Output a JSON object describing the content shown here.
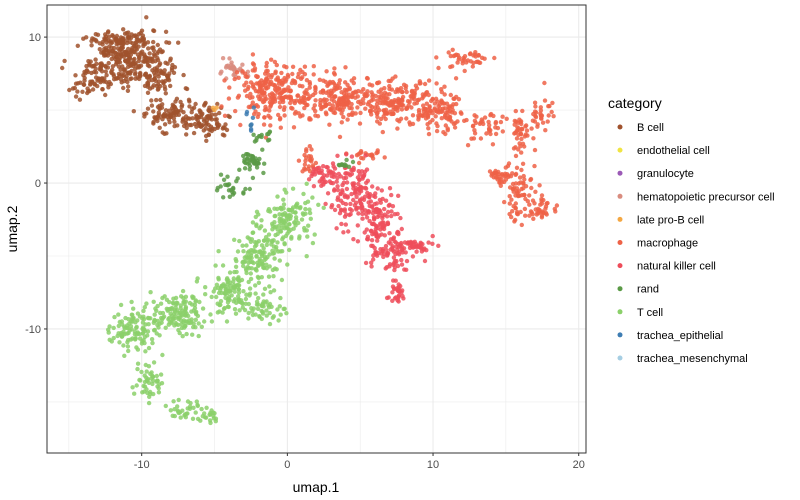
{
  "chart_data": {
    "type": "scatter",
    "title": "",
    "xlabel": "umap.1",
    "ylabel": "umap.2",
    "xlim": [
      -16.5,
      20.5
    ],
    "ylim": [
      -18.5,
      12.2
    ],
    "x_ticks": [
      -10,
      0,
      10,
      20
    ],
    "y_ticks": [
      -10,
      0,
      10
    ],
    "x_tick_labels": [
      "-10",
      "0",
      "10",
      "20"
    ],
    "y_tick_labels": [
      "-10",
      "0",
      "10"
    ],
    "grid": true,
    "legend_title": "category",
    "legend_position": "right",
    "series": [
      {
        "name": "B cell",
        "color": "#A0522D",
        "clusters": [
          [
            -11,
            8.5,
            2.2,
            1.6,
            260
          ],
          [
            -13.5,
            7,
            1.2,
            0.9,
            60
          ],
          [
            -9,
            7.5,
            1.3,
            1.5,
            70
          ],
          [
            -8.5,
            4.8,
            1.6,
            0.9,
            80
          ],
          [
            -6,
            4.5,
            1.3,
            0.8,
            70
          ],
          [
            -5,
            3.8,
            0.8,
            0.5,
            30
          ],
          [
            -11.5,
            9.8,
            1.8,
            0.4,
            50
          ]
        ]
      },
      {
        "name": "endothelial cell",
        "color": "#F0E442",
        "clusters": []
      },
      {
        "name": "granulocyte",
        "color": "#9B59B6",
        "clusters": []
      },
      {
        "name": "hematopoietic precursor cell",
        "color": "#D98C7F",
        "clusters": [
          [
            -3.7,
            7.7,
            0.8,
            0.5,
            30
          ]
        ]
      },
      {
        "name": "late pro-B cell",
        "color": "#F4A742",
        "clusters": [
          [
            -5,
            5,
            0.2,
            0.2,
            3
          ]
        ]
      },
      {
        "name": "macrophage",
        "color": "#EE6247",
        "clusters": [
          [
            -1,
            6.3,
            2.3,
            1.6,
            230
          ],
          [
            3.5,
            5.8,
            2.5,
            1.3,
            200
          ],
          [
            7.5,
            5.5,
            2,
            1.2,
            170
          ],
          [
            10.5,
            4.8,
            1.5,
            1.2,
            100
          ],
          [
            12.3,
            8.5,
            1.5,
            0.6,
            40
          ],
          [
            13.5,
            3.7,
            1.1,
            1,
            40
          ],
          [
            16,
            3.5,
            0.7,
            1,
            40
          ],
          [
            16,
            -0.5,
            1.1,
            1.8,
            80
          ],
          [
            17.5,
            -1.8,
            1,
            0.6,
            30
          ],
          [
            17.5,
            5,
            0.6,
            1.2,
            30
          ],
          [
            14.5,
            0.5,
            0.6,
            0.4,
            25
          ],
          [
            1.5,
            1.5,
            0.6,
            0.8,
            25
          ],
          [
            5.5,
            1.8,
            0.8,
            0.3,
            20
          ]
        ]
      },
      {
        "name": "natural killer cell",
        "color": "#EE4D5A",
        "clusters": [
          [
            4.5,
            -0.5,
            1.6,
            1.6,
            120
          ],
          [
            6,
            -2.3,
            1.4,
            1.4,
            110
          ],
          [
            7,
            -4.5,
            1.5,
            1.2,
            90
          ],
          [
            8.5,
            -4.3,
            1.2,
            0.4,
            30
          ],
          [
            7.5,
            -7.5,
            0.6,
            0.6,
            30
          ],
          [
            2.5,
            0.5,
            0.8,
            0.8,
            40
          ]
        ]
      },
      {
        "name": "rand",
        "color": "#5A9A46",
        "clusters": [
          [
            -2.2,
            1.5,
            0.8,
            0.7,
            40
          ],
          [
            -3.8,
            -0.5,
            0.8,
            0.6,
            25
          ],
          [
            -1.8,
            3.2,
            0.5,
            0.4,
            15
          ],
          [
            4,
            1.3,
            0.4,
            0.2,
            10
          ]
        ]
      },
      {
        "name": "T cell",
        "color": "#8BD06A",
        "clusters": [
          [
            0,
            -2.5,
            1.5,
            1.5,
            120
          ],
          [
            -2,
            -5,
            1.5,
            1.5,
            130
          ],
          [
            -4,
            -7.5,
            1.5,
            1.2,
            110
          ],
          [
            -7.5,
            -9,
            1.5,
            1.1,
            130
          ],
          [
            -10.5,
            -10,
            1.3,
            1.2,
            110
          ],
          [
            -9.5,
            -13.5,
            0.8,
            1.2,
            50
          ],
          [
            -7,
            -15.5,
            1,
            0.6,
            30
          ],
          [
            -5.5,
            -16,
            0.6,
            0.4,
            20
          ],
          [
            -1.5,
            -8.5,
            1.2,
            0.9,
            50
          ]
        ]
      },
      {
        "name": "trachea_epithelial",
        "color": "#3E7DB3",
        "clusters": [
          [
            -2.5,
            4.5,
            0.3,
            1,
            8
          ]
        ]
      },
      {
        "name": "trachea_mesenchymal",
        "color": "#A6CEE3",
        "clusters": []
      }
    ]
  }
}
